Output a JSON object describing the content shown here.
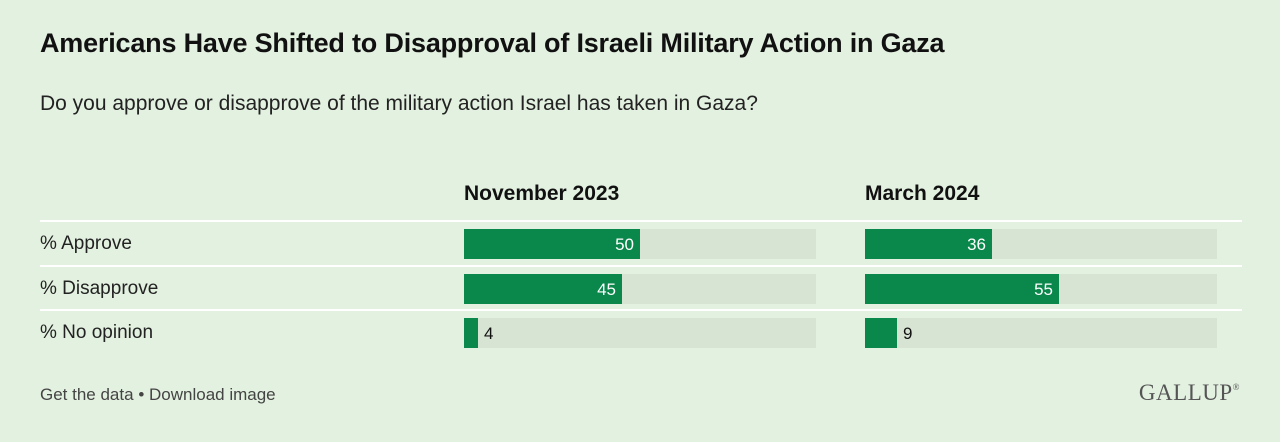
{
  "title": "Americans Have Shifted to Disapproval of Israeli Military Action in Gaza",
  "subtitle": "Do you approve or disapprove of the military action Israel has taken in Gaza?",
  "footer": {
    "get_data": "Get the data",
    "separator": "•",
    "download": "Download image"
  },
  "brand": "GALLUP",
  "colors": {
    "background": "#e3f1e0",
    "bar": "#0a874a",
    "track": "#d7e3d3"
  },
  "chart_data": {
    "type": "bar",
    "title": "Americans Have Shifted to Disapproval of Israeli Military Action in Gaza",
    "subtitle": "Do you approve or disapprove of the military action Israel has taken in Gaza?",
    "categories": [
      "% Approve",
      "% Disapprove",
      "% No opinion"
    ],
    "series": [
      {
        "name": "November 2023",
        "values": [
          50,
          45,
          4
        ]
      },
      {
        "name": "March 2024",
        "values": [
          36,
          55,
          9
        ]
      }
    ],
    "xlim": [
      0,
      100
    ],
    "unit": "%"
  }
}
